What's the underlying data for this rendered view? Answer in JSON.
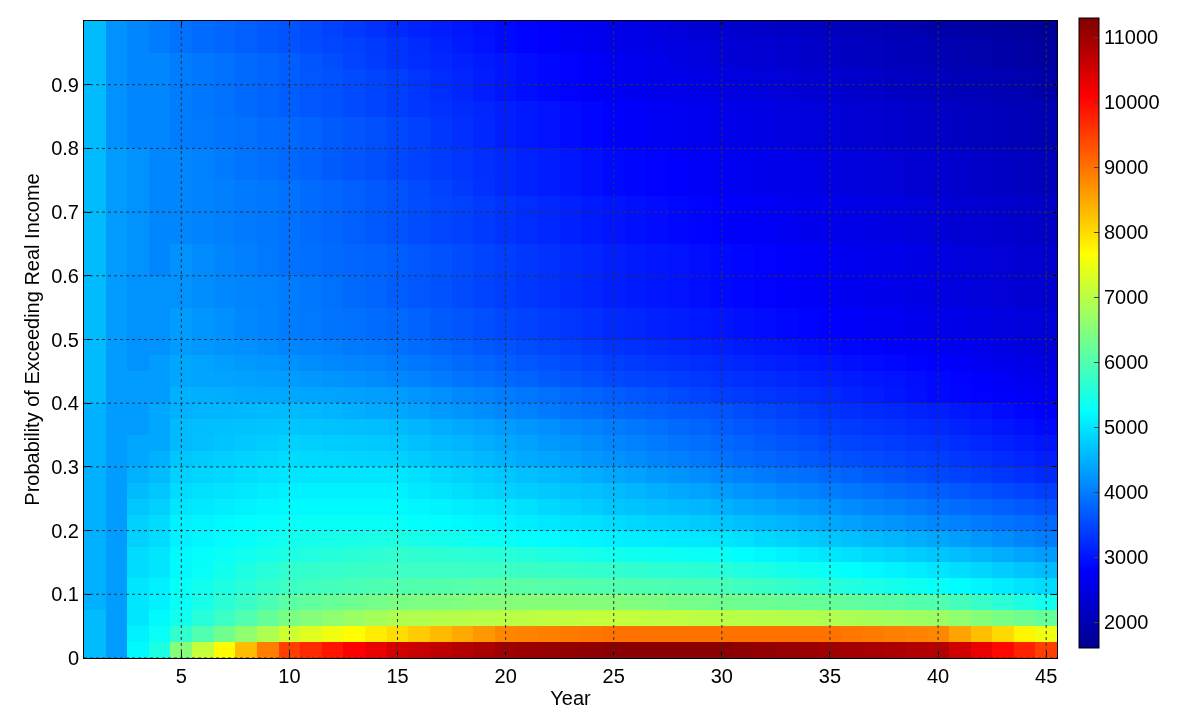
{
  "chart_data": {
    "type": "heatmap",
    "xlabel": "Year",
    "ylabel": "Probability of Exceeding Real Income",
    "x": [
      1,
      2,
      3,
      4,
      5,
      6,
      7,
      8,
      9,
      10,
      11,
      12,
      13,
      14,
      15,
      16,
      17,
      18,
      19,
      20,
      21,
      22,
      23,
      24,
      25,
      26,
      27,
      28,
      29,
      30,
      31,
      32,
      33,
      34,
      35,
      36,
      37,
      38,
      39,
      40,
      41,
      42,
      43,
      44,
      45
    ],
    "xlim": [
      0.5,
      45.5
    ],
    "xticks": [
      5,
      10,
      15,
      20,
      25,
      30,
      35,
      40,
      45
    ],
    "ylim": [
      0,
      1
    ],
    "yticks": [
      0,
      0.1,
      0.2,
      0.3,
      0.4,
      0.5,
      0.6,
      0.7,
      0.8,
      0.9
    ],
    "clim": [
      1600,
      11300
    ],
    "cticks": [
      2000,
      3000,
      4000,
      5000,
      6000,
      7000,
      8000,
      9000,
      10000,
      11000
    ],
    "grid": true,
    "cells": [
      [
        4600,
        4200,
        4100,
        4000,
        3900,
        3840,
        3780,
        3720,
        3660,
        3600,
        3520,
        3440,
        3360,
        3280,
        3200,
        3140,
        3080,
        3020,
        2960,
        2900,
        2840,
        2780,
        2720,
        2660,
        2600,
        2540,
        2480,
        2420,
        2360,
        2300,
        2260,
        2220,
        2180,
        2140,
        2100,
        2060,
        2020,
        1980,
        1940,
        1900,
        1860,
        1820,
        1780,
        1740,
        1700
      ],
      [
        4600,
        4200,
        4100,
        4000,
        3900,
        3840,
        3780,
        3720,
        3660,
        3600,
        3540,
        3480,
        3420,
        3360,
        3300,
        3220,
        3140,
        3060,
        2980,
        2900,
        2840,
        2780,
        2720,
        2660,
        2600,
        2560,
        2520,
        2480,
        2440,
        2400,
        2360,
        2320,
        2280,
        2240,
        2200,
        2160,
        2120,
        2080,
        2040,
        2000,
        1960,
        1920,
        1880,
        1840,
        1800
      ],
      [
        4600,
        4200,
        4100,
        4100,
        4000,
        3940,
        3880,
        3820,
        3760,
        3700,
        3620,
        3540,
        3460,
        3380,
        3300,
        3240,
        3180,
        3120,
        3060,
        3000,
        2940,
        2880,
        2820,
        2760,
        2700,
        2640,
        2580,
        2520,
        2460,
        2400,
        2360,
        2320,
        2280,
        2240,
        2200,
        2160,
        2120,
        2080,
        2040,
        2000,
        1960,
        1920,
        1880,
        1840,
        1800
      ],
      [
        4600,
        4200,
        4100,
        4100,
        4000,
        3940,
        3880,
        3820,
        3760,
        3700,
        3640,
        3580,
        3520,
        3460,
        3400,
        3320,
        3240,
        3160,
        3080,
        3000,
        2940,
        2880,
        2820,
        2760,
        2700,
        2660,
        2620,
        2580,
        2540,
        2500,
        2460,
        2420,
        2380,
        2340,
        2300,
        2260,
        2220,
        2180,
        2140,
        2100,
        2060,
        2020,
        1980,
        1940,
        1900
      ],
      [
        4600,
        4200,
        4100,
        4100,
        4000,
        3940,
        3880,
        3820,
        3760,
        3700,
        3640,
        3580,
        3520,
        3460,
        3400,
        3320,
        3240,
        3160,
        3080,
        3000,
        2940,
        2880,
        2820,
        2760,
        2700,
        2660,
        2620,
        2580,
        2540,
        2500,
        2460,
        2420,
        2380,
        2340,
        2300,
        2260,
        2220,
        2180,
        2140,
        2100,
        2060,
        2020,
        1980,
        1940,
        1900
      ],
      [
        4600,
        4200,
        4100,
        4100,
        4000,
        3940,
        3880,
        3820,
        3760,
        3700,
        3640,
        3580,
        3520,
        3460,
        3400,
        3340,
        3280,
        3220,
        3160,
        3100,
        3040,
        2980,
        2920,
        2860,
        2800,
        2760,
        2720,
        2680,
        2640,
        2600,
        2560,
        2520,
        2480,
        2440,
        2400,
        2360,
        2320,
        2280,
        2240,
        2200,
        2160,
        2120,
        2080,
        2040,
        2000
      ],
      [
        4600,
        4200,
        4100,
        4100,
        4000,
        3960,
        3920,
        3880,
        3840,
        3800,
        3740,
        3680,
        3620,
        3560,
        3500,
        3420,
        3340,
        3260,
        3180,
        3100,
        3040,
        2980,
        2920,
        2860,
        2800,
        2760,
        2720,
        2680,
        2640,
        2600,
        2560,
        2520,
        2480,
        2440,
        2400,
        2360,
        2320,
        2280,
        2240,
        2200,
        2160,
        2120,
        2080,
        2040,
        2000
      ],
      [
        4600,
        4200,
        4100,
        4100,
        4000,
        3960,
        3920,
        3880,
        3840,
        3800,
        3740,
        3680,
        3620,
        3560,
        3500,
        3420,
        3340,
        3260,
        3180,
        3100,
        3040,
        2980,
        2920,
        2860,
        2800,
        2760,
        2720,
        2680,
        2640,
        2600,
        2560,
        2520,
        2480,
        2440,
        2400,
        2360,
        2320,
        2280,
        2240,
        2200,
        2160,
        2120,
        2080,
        2040,
        2000
      ],
      [
        4600,
        4300,
        4200,
        4100,
        4100,
        4040,
        3980,
        3920,
        3860,
        3800,
        3740,
        3680,
        3620,
        3560,
        3500,
        3440,
        3380,
        3320,
        3260,
        3200,
        3140,
        3080,
        3020,
        2960,
        2900,
        2860,
        2820,
        2780,
        2740,
        2700,
        2660,
        2620,
        2580,
        2540,
        2500,
        2460,
        2420,
        2380,
        2340,
        2300,
        2260,
        2220,
        2180,
        2140,
        2100
      ],
      [
        4600,
        4300,
        4200,
        4100,
        4100,
        4040,
        3980,
        3920,
        3860,
        3800,
        3740,
        3680,
        3620,
        3560,
        3500,
        3440,
        3380,
        3320,
        3260,
        3200,
        3140,
        3080,
        3020,
        2960,
        2900,
        2860,
        2820,
        2780,
        2740,
        2700,
        2660,
        2620,
        2580,
        2540,
        2500,
        2460,
        2420,
        2380,
        2340,
        2300,
        2260,
        2220,
        2180,
        2140,
        2100
      ],
      [
        4600,
        4300,
        4200,
        4100,
        4100,
        4060,
        4020,
        3980,
        3940,
        3900,
        3840,
        3780,
        3720,
        3660,
        3600,
        3520,
        3440,
        3360,
        3280,
        3200,
        3140,
        3080,
        3020,
        2960,
        2900,
        2860,
        2820,
        2780,
        2740,
        2700,
        2660,
        2620,
        2580,
        2540,
        2500,
        2460,
        2420,
        2380,
        2340,
        2300,
        2260,
        2220,
        2180,
        2140,
        2100
      ],
      [
        4600,
        4300,
        4200,
        4100,
        4100,
        4060,
        4020,
        3980,
        3940,
        3900,
        3840,
        3780,
        3720,
        3660,
        3600,
        3540,
        3480,
        3420,
        3360,
        3300,
        3240,
        3180,
        3120,
        3060,
        3000,
        2960,
        2920,
        2880,
        2840,
        2800,
        2760,
        2720,
        2680,
        2640,
        2600,
        2560,
        2520,
        2480,
        2440,
        2400,
        2360,
        2320,
        2280,
        2240,
        2200
      ],
      [
        4600,
        4300,
        4200,
        4100,
        4100,
        4060,
        4020,
        3980,
        3940,
        3900,
        3840,
        3780,
        3720,
        3660,
        3600,
        3540,
        3480,
        3420,
        3360,
        3300,
        3240,
        3180,
        3120,
        3060,
        3000,
        2960,
        2920,
        2880,
        2840,
        2800,
        2760,
        2720,
        2680,
        2640,
        2600,
        2560,
        2520,
        2480,
        2440,
        2400,
        2360,
        2320,
        2280,
        2240,
        2200
      ],
      [
        4600,
        4300,
        4200,
        4100,
        4100,
        4060,
        4020,
        3980,
        3940,
        3900,
        3840,
        3780,
        3720,
        3660,
        3600,
        3540,
        3480,
        3420,
        3360,
        3300,
        3240,
        3180,
        3120,
        3060,
        3000,
        2960,
        2920,
        2880,
        2840,
        2800,
        2760,
        2720,
        2680,
        2640,
        2600,
        2560,
        2520,
        2480,
        2440,
        2400,
        2360,
        2320,
        2280,
        2240,
        2200
      ],
      [
        4600,
        4300,
        4200,
        4100,
        4200,
        4140,
        4080,
        4020,
        3960,
        3900,
        3860,
        3820,
        3780,
        3740,
        3700,
        3640,
        3580,
        3520,
        3460,
        3400,
        3340,
        3280,
        3220,
        3160,
        3100,
        3060,
        3020,
        2980,
        2940,
        2900,
        2860,
        2820,
        2780,
        2740,
        2700,
        2660,
        2620,
        2580,
        2540,
        2500,
        2460,
        2420,
        2380,
        2340,
        2300
      ],
      [
        4600,
        4300,
        4200,
        4100,
        4200,
        4140,
        4080,
        4020,
        3960,
        3900,
        3860,
        3820,
        3780,
        3740,
        3700,
        3640,
        3580,
        3520,
        3460,
        3400,
        3340,
        3280,
        3220,
        3160,
        3100,
        3060,
        3020,
        2980,
        2940,
        2900,
        2860,
        2820,
        2780,
        2740,
        2700,
        2660,
        2620,
        2580,
        2540,
        2500,
        2460,
        2420,
        2380,
        2340,
        2300
      ],
      [
        4600,
        4300,
        4200,
        4200,
        4200,
        4160,
        4120,
        4080,
        4040,
        4000,
        3940,
        3880,
        3820,
        3760,
        3700,
        3640,
        3580,
        3520,
        3460,
        3400,
        3340,
        3280,
        3220,
        3160,
        3100,
        3060,
        3020,
        2980,
        2940,
        2900,
        2860,
        2820,
        2780,
        2740,
        2700,
        2660,
        2620,
        2580,
        2540,
        2500,
        2460,
        2420,
        2380,
        2340,
        2300
      ],
      [
        4600,
        4300,
        4200,
        4200,
        4200,
        4160,
        4120,
        4080,
        4040,
        4000,
        3940,
        3880,
        3820,
        3760,
        3700,
        3640,
        3580,
        3520,
        3460,
        3400,
        3340,
        3280,
        3220,
        3160,
        3100,
        3060,
        3020,
        2980,
        2940,
        2900,
        2860,
        2820,
        2780,
        2740,
        2700,
        2660,
        2620,
        2580,
        2540,
        2500,
        2460,
        2420,
        2380,
        2340,
        2300
      ],
      [
        4600,
        4300,
        4200,
        4200,
        4300,
        4240,
        4180,
        4120,
        4060,
        4000,
        3960,
        3920,
        3880,
        3840,
        3800,
        3740,
        3680,
        3620,
        3560,
        3500,
        3440,
        3380,
        3320,
        3260,
        3200,
        3160,
        3120,
        3080,
        3040,
        3000,
        2960,
        2920,
        2880,
        2840,
        2800,
        2760,
        2720,
        2680,
        2640,
        2600,
        2560,
        2520,
        2480,
        2440,
        2400
      ],
      [
        4600,
        4300,
        4200,
        4200,
        4300,
        4240,
        4180,
        4120,
        4060,
        4000,
        3960,
        3920,
        3880,
        3840,
        3800,
        3740,
        3680,
        3620,
        3560,
        3500,
        3440,
        3380,
        3320,
        3260,
        3200,
        3160,
        3120,
        3080,
        3040,
        3000,
        2960,
        2920,
        2880,
        2840,
        2800,
        2760,
        2720,
        2680,
        2640,
        2600,
        2560,
        2520,
        2480,
        2440,
        2400
      ],
      [
        4600,
        4300,
        4200,
        4200,
        4300,
        4260,
        4220,
        4180,
        4140,
        4100,
        4060,
        4020,
        3980,
        3940,
        3900,
        3840,
        3780,
        3720,
        3660,
        3600,
        3540,
        3480,
        3420,
        3360,
        3300,
        3260,
        3220,
        3180,
        3140,
        3100,
        3060,
        3020,
        2980,
        2940,
        2900,
        2860,
        2820,
        2780,
        2740,
        2700,
        2640,
        2580,
        2520,
        2460,
        2400
      ],
      [
        4600,
        4300,
        4200,
        4300,
        4400,
        4360,
        4320,
        4280,
        4240,
        4200,
        4160,
        4120,
        4080,
        4040,
        4000,
        3940,
        3880,
        3820,
        3760,
        3700,
        3640,
        3580,
        3520,
        3460,
        3400,
        3360,
        3320,
        3280,
        3240,
        3200,
        3160,
        3120,
        3080,
        3040,
        3000,
        2960,
        2920,
        2880,
        2840,
        2800,
        2740,
        2680,
        2620,
        2560,
        2500
      ],
      [
        4600,
        4300,
        4300,
        4300,
        4400,
        4380,
        4360,
        4340,
        4320,
        4300,
        4260,
        4220,
        4180,
        4140,
        4100,
        4040,
        3980,
        3920,
        3860,
        3800,
        3740,
        3680,
        3620,
        3560,
        3500,
        3460,
        3420,
        3380,
        3340,
        3300,
        3260,
        3220,
        3180,
        3140,
        3100,
        3060,
        3020,
        2980,
        2940,
        2900,
        2840,
        2780,
        2720,
        2660,
        2600
      ],
      [
        4600,
        4300,
        4300,
        4300,
        4500,
        4480,
        4460,
        4440,
        4420,
        4400,
        4380,
        4360,
        4340,
        4320,
        4300,
        4240,
        4180,
        4120,
        4060,
        4000,
        3940,
        3880,
        3820,
        3760,
        3700,
        3640,
        3580,
        3520,
        3460,
        3400,
        3360,
        3320,
        3280,
        3240,
        3200,
        3140,
        3080,
        3020,
        2960,
        2900,
        2860,
        2820,
        2780,
        2740,
        2700
      ],
      [
        4500,
        4300,
        4300,
        4400,
        4500,
        4520,
        4540,
        4560,
        4580,
        4600,
        4560,
        4520,
        4480,
        4440,
        4400,
        4340,
        4280,
        4220,
        4160,
        4100,
        4040,
        3980,
        3920,
        3860,
        3800,
        3760,
        3720,
        3680,
        3640,
        3600,
        3540,
        3480,
        3420,
        3360,
        3300,
        3260,
        3220,
        3180,
        3140,
        3100,
        3040,
        2980,
        2920,
        2860,
        2800
      ],
      [
        4500,
        4300,
        4300,
        4400,
        4600,
        4620,
        4640,
        4660,
        4680,
        4700,
        4680,
        4660,
        4640,
        4620,
        4600,
        4540,
        4480,
        4420,
        4360,
        4300,
        4240,
        4180,
        4120,
        4060,
        4000,
        3940,
        3880,
        3820,
        3760,
        3700,
        3640,
        3580,
        3520,
        3460,
        3400,
        3360,
        3320,
        3280,
        3240,
        3200,
        3140,
        3080,
        3020,
        2960,
        2900
      ],
      [
        4500,
        4300,
        4400,
        4400,
        4600,
        4640,
        4680,
        4720,
        4760,
        4800,
        4780,
        4760,
        4740,
        4720,
        4700,
        4640,
        4580,
        4520,
        4460,
        4400,
        4340,
        4280,
        4220,
        4160,
        4100,
        4040,
        3980,
        3920,
        3860,
        3800,
        3740,
        3680,
        3620,
        3560,
        3500,
        3460,
        3420,
        3380,
        3340,
        3300,
        3240,
        3180,
        3120,
        3060,
        3000
      ],
      [
        4500,
        4300,
        4400,
        4500,
        4700,
        4740,
        4780,
        4820,
        4860,
        4900,
        4880,
        4860,
        4840,
        4820,
        4800,
        4740,
        4680,
        4620,
        4560,
        4500,
        4440,
        4380,
        4320,
        4260,
        4200,
        4140,
        4080,
        4020,
        3960,
        3900,
        3840,
        3780,
        3720,
        3660,
        3600,
        3560,
        3520,
        3480,
        3440,
        3400,
        3340,
        3280,
        3220,
        3160,
        3100
      ],
      [
        4500,
        4300,
        4500,
        4600,
        4800,
        4840,
        4880,
        4920,
        4960,
        5000,
        5000,
        5000,
        5000,
        5000,
        5000,
        4940,
        4880,
        4820,
        4760,
        4700,
        4640,
        4580,
        4520,
        4460,
        4400,
        4340,
        4280,
        4220,
        4160,
        4100,
        4040,
        3980,
        3920,
        3860,
        3800,
        3740,
        3680,
        3620,
        3560,
        3500,
        3440,
        3380,
        3320,
        3260,
        3200
      ],
      [
        4500,
        4300,
        4600,
        4700,
        4900,
        4940,
        4980,
        5020,
        5060,
        5100,
        5100,
        5100,
        5100,
        5100,
        5100,
        5040,
        4980,
        4920,
        4860,
        4800,
        4760,
        4720,
        4680,
        4640,
        4600,
        4540,
        4480,
        4420,
        4360,
        4300,
        4240,
        4180,
        4120,
        4060,
        4000,
        3940,
        3880,
        3820,
        3760,
        3700,
        3640,
        3580,
        3520,
        3460,
        3400
      ],
      [
        4500,
        4300,
        4700,
        4800,
        5000,
        5040,
        5080,
        5120,
        5160,
        5200,
        5200,
        5200,
        5200,
        5200,
        5200,
        5160,
        5120,
        5080,
        5040,
        5000,
        4940,
        4880,
        4820,
        4760,
        4700,
        4660,
        4620,
        4580,
        4540,
        4500,
        4440,
        4380,
        4320,
        4260,
        4200,
        4140,
        4080,
        4020,
        3960,
        3900,
        3840,
        3780,
        3720,
        3660,
        3600
      ],
      [
        4500,
        4300,
        4800,
        4900,
        5100,
        5140,
        5180,
        5220,
        5260,
        5300,
        5300,
        5300,
        5300,
        5300,
        5300,
        5260,
        5220,
        5180,
        5140,
        5100,
        5060,
        5020,
        4980,
        4940,
        4900,
        4860,
        4820,
        4780,
        4740,
        4700,
        4640,
        4580,
        4520,
        4460,
        4400,
        4340,
        4280,
        4220,
        4160,
        4100,
        4040,
        3980,
        3920,
        3860,
        3800
      ],
      [
        4500,
        4300,
        4800,
        4900,
        5100,
        5160,
        5220,
        5280,
        5340,
        5400,
        5420,
        5440,
        5460,
        5480,
        5500,
        5460,
        5420,
        5380,
        5340,
        5300,
        5260,
        5220,
        5180,
        5140,
        5100,
        5080,
        5060,
        5040,
        5020,
        5000,
        4940,
        4880,
        4820,
        4760,
        4700,
        4640,
        4580,
        4520,
        4460,
        4400,
        4320,
        4240,
        4160,
        4080,
        4000
      ],
      [
        4500,
        4300,
        4900,
        5000,
        5200,
        5260,
        5320,
        5380,
        5440,
        5500,
        5540,
        5580,
        5620,
        5660,
        5700,
        5680,
        5660,
        5640,
        5620,
        5600,
        5560,
        5520,
        5480,
        5440,
        5400,
        5380,
        5360,
        5340,
        5320,
        5300,
        5240,
        5180,
        5120,
        5060,
        5000,
        4940,
        4880,
        4820,
        4760,
        4700,
        4620,
        4540,
        4460,
        4380,
        4300
      ],
      [
        4500,
        4300,
        4900,
        5000,
        5200,
        5300,
        5400,
        5500,
        5600,
        5700,
        5720,
        5740,
        5760,
        5780,
        5800,
        5800,
        5800,
        5800,
        5800,
        5800,
        5780,
        5760,
        5740,
        5720,
        5700,
        5680,
        5660,
        5640,
        5620,
        5600,
        5540,
        5480,
        5420,
        5360,
        5300,
        5240,
        5180,
        5120,
        5060,
        5000,
        4920,
        4840,
        4760,
        4680,
        4600
      ],
      [
        4500,
        4300,
        5000,
        5100,
        5300,
        5400,
        5500,
        5600,
        5700,
        5800,
        5840,
        5880,
        5920,
        5960,
        6000,
        6020,
        6040,
        6060,
        6080,
        6100,
        6080,
        6060,
        6040,
        6020,
        6000,
        5980,
        5960,
        5940,
        5920,
        5900,
        5840,
        5780,
        5720,
        5660,
        5600,
        5540,
        5480,
        5420,
        5360,
        5300,
        5220,
        5140,
        5060,
        4980,
        4900
      ],
      [
        4500,
        4300,
        5000,
        5100,
        5300,
        5460,
        5620,
        5780,
        5940,
        6100,
        6160,
        6220,
        6280,
        6340,
        6400,
        6420,
        6440,
        6460,
        6480,
        6500,
        6500,
        6500,
        6500,
        6500,
        6500,
        6460,
        6420,
        6380,
        6340,
        6300,
        6280,
        6260,
        6240,
        6220,
        6200,
        6160,
        6120,
        6080,
        6040,
        6000,
        5880,
        5760,
        5640,
        5520,
        5400
      ],
      [
        4600,
        4300,
        5000,
        5200,
        5400,
        5600,
        5800,
        6000,
        6200,
        6400,
        6500,
        6600,
        6700,
        6800,
        6900,
        6920,
        6940,
        6960,
        6980,
        7000,
        7020,
        7040,
        7060,
        7080,
        7100,
        7080,
        7060,
        7040,
        7020,
        7000,
        6980,
        6960,
        6940,
        6920,
        6900,
        6860,
        6820,
        6780,
        6740,
        6700,
        6600,
        6500,
        6400,
        6300,
        6200
      ],
      [
        4600,
        4300,
        5100,
        5300,
        5700,
        6000,
        6300,
        6600,
        6900,
        7200,
        7360,
        7520,
        7680,
        7840,
        8000,
        8160,
        8320,
        8480,
        8640,
        8800,
        8840,
        8880,
        8920,
        8960,
        9000,
        9000,
        9000,
        9000,
        9000,
        9000,
        9000,
        9000,
        9000,
        9000,
        9000,
        8960,
        8920,
        8880,
        8840,
        8800,
        8540,
        8280,
        8020,
        7760,
        7500
      ],
      [
        4600,
        4300,
        5200,
        5500,
        6500,
        7100,
        7700,
        8300,
        8900,
        9500,
        9700,
        9900,
        10100,
        10300,
        10500,
        10600,
        10700,
        10800,
        10900,
        11000,
        11040,
        11080,
        11120,
        11160,
        11200,
        11200,
        11200,
        11200,
        11200,
        11200,
        11160,
        11120,
        11080,
        11040,
        11000,
        10960,
        10920,
        10880,
        10840,
        10800,
        10540,
        10280,
        10020,
        9760,
        9500
      ]
    ]
  }
}
